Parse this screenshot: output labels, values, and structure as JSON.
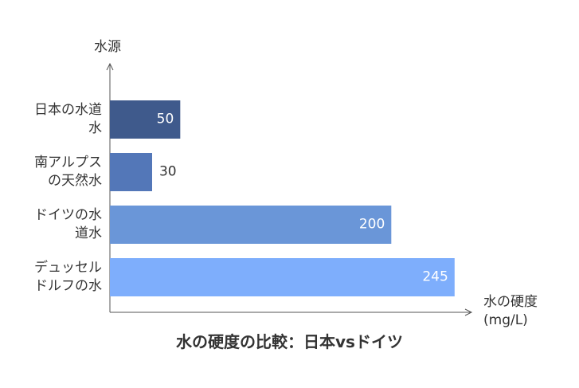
{
  "chart_data": {
    "type": "bar",
    "orientation": "horizontal",
    "title": "水の硬度の比較：日本vsドイツ",
    "y_label": "水源",
    "x_label": "水の硬度\n(mg/L)",
    "categories": [
      "日本の水道\n水",
      "南アルプス\nの天然水",
      "ドイツの水\n道水",
      "デュッセル\nドルフの水"
    ],
    "values": [
      50,
      30,
      200,
      245
    ],
    "colors": [
      "#3f5a8c",
      "#5377b8",
      "#6a96d8",
      "#7eaefc"
    ],
    "xlim": [
      0,
      257
    ]
  }
}
